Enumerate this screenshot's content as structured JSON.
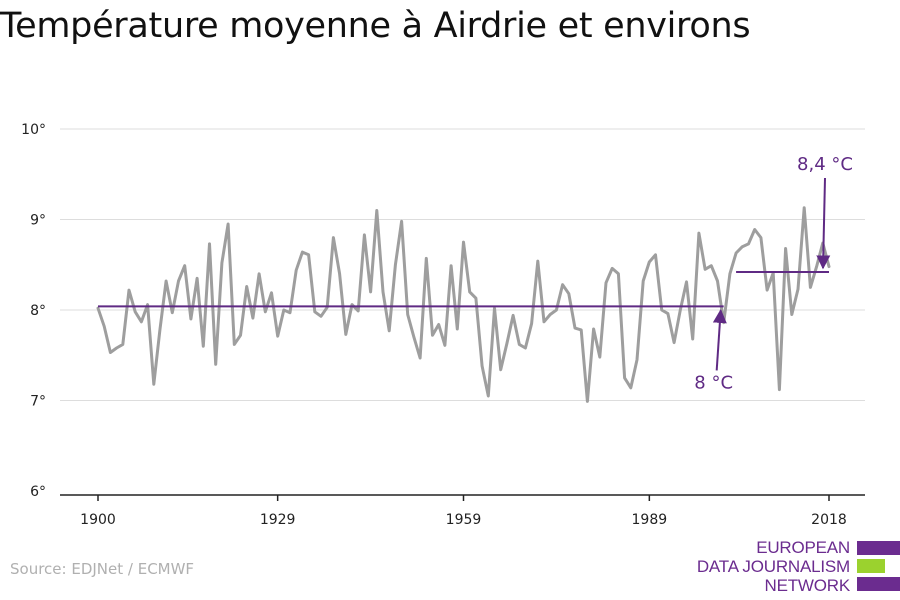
{
  "title": "Température moyenne à Airdrie et environs",
  "source": "Source: EDJNet / ECMWF",
  "logo": {
    "lines": [
      "EUROPEAN",
      "DATA JOURNALISM",
      "NETWORK"
    ],
    "colors": [
      "#6b2c8f",
      "#9bd22e",
      "#6b2c8f"
    ]
  },
  "chart_data": {
    "type": "line",
    "title": "Température moyenne à Airdrie et environs",
    "xlabel": "",
    "ylabel": "",
    "xlim": [
      1900,
      2019
    ],
    "ylim": [
      6,
      10
    ],
    "x_ticks": [
      1900,
      1929,
      1959,
      1989,
      2018
    ],
    "y_ticks": [
      6,
      7,
      8,
      9,
      10
    ],
    "y_tick_labels": [
      "6°",
      "7°",
      "8°",
      "9°",
      "10°"
    ],
    "grid": true,
    "colors": {
      "series": "#9e9e9e",
      "reference": "#5f2a84",
      "annotation": "#5f2a84",
      "grid": "#dddddd",
      "axis": "#222222"
    },
    "x_start": 1900,
    "series": [
      {
        "values": [
          8.02,
          7.82,
          7.53,
          7.58,
          7.62,
          8.22,
          7.98,
          7.87,
          8.06,
          7.18,
          7.78,
          8.32,
          7.97,
          8.32,
          8.49,
          7.9,
          8.35,
          7.6,
          8.73,
          7.4,
          8.52,
          8.95,
          7.62,
          7.72,
          8.26,
          7.91,
          8.4,
          7.98,
          8.19,
          7.71,
          8.0,
          7.97,
          8.44,
          8.64,
          8.61,
          7.98,
          7.93,
          8.03,
          8.8,
          8.4,
          7.73,
          8.06,
          7.99,
          8.83,
          8.2,
          9.1,
          8.2,
          7.77,
          8.5,
          8.98,
          7.95,
          7.7,
          7.47,
          8.57,
          7.72,
          7.84,
          7.61,
          8.49,
          7.79,
          8.75,
          8.2,
          8.13,
          7.38,
          7.05,
          8.02,
          7.34,
          7.63,
          7.94,
          7.62,
          7.58,
          7.85,
          8.54,
          7.87,
          7.95,
          8.0,
          8.28,
          8.18,
          7.8,
          7.78,
          6.99,
          7.79,
          7.48,
          8.3,
          8.46,
          8.4,
          7.25,
          7.14,
          7.45,
          8.32,
          8.53,
          8.61,
          8.0,
          7.96,
          7.64,
          8.0,
          8.31,
          7.68,
          8.85,
          8.45,
          8.49,
          8.32,
          7.86,
          8.4,
          8.63,
          8.7,
          8.73,
          8.89,
          8.8,
          8.22,
          8.41,
          7.12,
          8.68,
          7.95,
          8.23,
          9.13,
          8.25,
          8.48,
          8.74,
          8.48
        ]
      }
    ],
    "reference_lines": [
      {
        "x_from": 1900,
        "x_to": 2001,
        "y": 8.04,
        "label": "8 °C"
      },
      {
        "x_from": 2003,
        "x_to": 2018,
        "y": 8.42,
        "label": "8,4 °C"
      }
    ]
  }
}
